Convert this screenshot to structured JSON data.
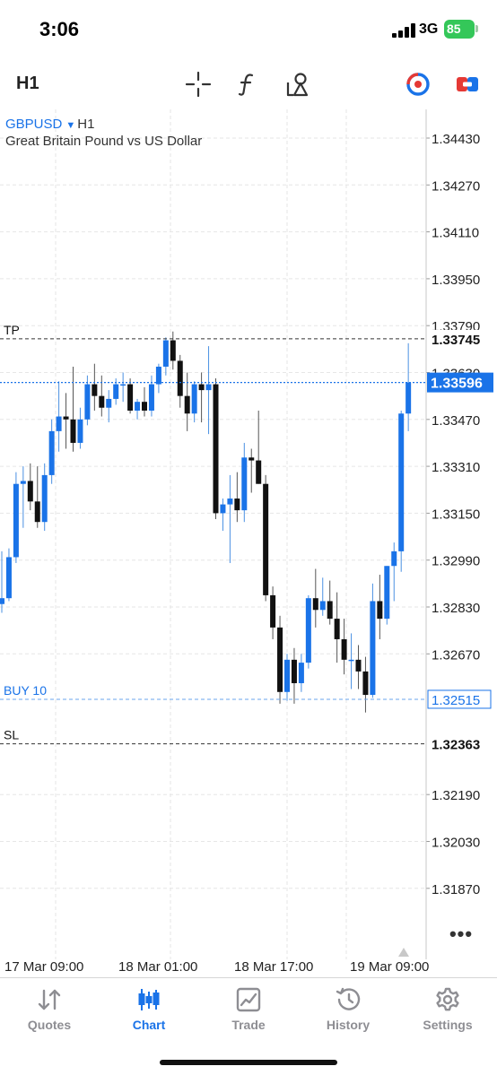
{
  "status_bar": {
    "time": "3:06",
    "network": "3G",
    "battery": "85"
  },
  "toolbar": {
    "timeframe": "H1",
    "icons": [
      "crosshair-icon",
      "indicator-icon",
      "objects-icon",
      "trade-color-icon",
      "one-click-trading-icon"
    ]
  },
  "symbol": {
    "name": "GBPUSD",
    "timeframe": "H1",
    "description": "Great Britain Pound vs US Dollar"
  },
  "chart_data": {
    "type": "candlestick",
    "symbol": "GBPUSD",
    "timeframe": "H1",
    "ylim": [
      1.3172,
      1.3452
    ],
    "grid": true,
    "price_ticks": [
      "1.34430",
      "1.34270",
      "1.34110",
      "1.33950",
      "1.33790",
      "1.33630",
      "1.33470",
      "1.33310",
      "1.33150",
      "1.32990",
      "1.32830",
      "1.32670",
      "1.32190",
      "1.32030",
      "1.31870"
    ],
    "time_labels": [
      "17 Mar 09:00",
      "18 Mar 01:00",
      "18 Mar 17:00",
      "19 Mar 09:00"
    ],
    "current_price": "1.33596",
    "levels": [
      {
        "name": "TP",
        "price": "1.33745",
        "color": "#111111"
      },
      {
        "name": "BUY 10",
        "price": "1.32515",
        "color": "#1a73e8"
      },
      {
        "name": "SL",
        "price": "1.32363",
        "color": "#111111"
      }
    ],
    "candles": [
      {
        "o": 1.3284,
        "h": 1.3302,
        "l": 1.3281,
        "c": 1.3286
      },
      {
        "o": 1.3286,
        "h": 1.3303,
        "l": 1.3285,
        "c": 1.33
      },
      {
        "o": 1.33,
        "h": 1.3329,
        "l": 1.3298,
        "c": 1.3325
      },
      {
        "o": 1.3325,
        "h": 1.3331,
        "l": 1.331,
        "c": 1.3326
      },
      {
        "o": 1.3326,
        "h": 1.3332,
        "l": 1.3316,
        "c": 1.3319
      },
      {
        "o": 1.3319,
        "h": 1.3331,
        "l": 1.331,
        "c": 1.3312
      },
      {
        "o": 1.3312,
        "h": 1.3332,
        "l": 1.3309,
        "c": 1.3328
      },
      {
        "o": 1.3328,
        "h": 1.3347,
        "l": 1.3325,
        "c": 1.3343
      },
      {
        "o": 1.3343,
        "h": 1.336,
        "l": 1.3336,
        "c": 1.3348
      },
      {
        "o": 1.3348,
        "h": 1.3356,
        "l": 1.3337,
        "c": 1.3347
      },
      {
        "o": 1.3347,
        "h": 1.3365,
        "l": 1.3336,
        "c": 1.3339
      },
      {
        "o": 1.3339,
        "h": 1.3351,
        "l": 1.3337,
        "c": 1.3347
      },
      {
        "o": 1.3347,
        "h": 1.3362,
        "l": 1.3345,
        "c": 1.3359
      },
      {
        "o": 1.3359,
        "h": 1.3366,
        "l": 1.335,
        "c": 1.3355
      },
      {
        "o": 1.3355,
        "h": 1.3362,
        "l": 1.3348,
        "c": 1.3351
      },
      {
        "o": 1.3351,
        "h": 1.3357,
        "l": 1.3346,
        "c": 1.3354
      },
      {
        "o": 1.3354,
        "h": 1.3361,
        "l": 1.3352,
        "c": 1.3359
      },
      {
        "o": 1.3359,
        "h": 1.3363,
        "l": 1.3353,
        "c": 1.3359
      },
      {
        "o": 1.3359,
        "h": 1.3361,
        "l": 1.3349,
        "c": 1.335
      },
      {
        "o": 1.335,
        "h": 1.3354,
        "l": 1.3347,
        "c": 1.3353
      },
      {
        "o": 1.3353,
        "h": 1.3358,
        "l": 1.3348,
        "c": 1.335
      },
      {
        "o": 1.335,
        "h": 1.3362,
        "l": 1.3348,
        "c": 1.3359
      },
      {
        "o": 1.3359,
        "h": 1.3366,
        "l": 1.3356,
        "c": 1.3365
      },
      {
        "o": 1.3365,
        "h": 1.3375,
        "l": 1.3362,
        "c": 1.3374
      },
      {
        "o": 1.3374,
        "h": 1.3377,
        "l": 1.3364,
        "c": 1.3367
      },
      {
        "o": 1.3367,
        "h": 1.3369,
        "l": 1.3351,
        "c": 1.3355
      },
      {
        "o": 1.3355,
        "h": 1.3363,
        "l": 1.3343,
        "c": 1.3349
      },
      {
        "o": 1.3349,
        "h": 1.336,
        "l": 1.3346,
        "c": 1.3359
      },
      {
        "o": 1.3359,
        "h": 1.3363,
        "l": 1.3346,
        "c": 1.3357
      },
      {
        "o": 1.3357,
        "h": 1.3372,
        "l": 1.3342,
        "c": 1.3359
      },
      {
        "o": 1.3359,
        "h": 1.3361,
        "l": 1.3313,
        "c": 1.3315
      },
      {
        "o": 1.3315,
        "h": 1.332,
        "l": 1.3309,
        "c": 1.3318
      },
      {
        "o": 1.3318,
        "h": 1.3328,
        "l": 1.3298,
        "c": 1.332
      },
      {
        "o": 1.332,
        "h": 1.3329,
        "l": 1.3312,
        "c": 1.3316
      },
      {
        "o": 1.3316,
        "h": 1.3339,
        "l": 1.3312,
        "c": 1.3334
      },
      {
        "o": 1.3334,
        "h": 1.3337,
        "l": 1.3322,
        "c": 1.3333
      },
      {
        "o": 1.3333,
        "h": 1.335,
        "l": 1.3325,
        "c": 1.3325
      },
      {
        "o": 1.3325,
        "h": 1.3328,
        "l": 1.3285,
        "c": 1.3287
      },
      {
        "o": 1.3287,
        "h": 1.329,
        "l": 1.3272,
        "c": 1.3276
      },
      {
        "o": 1.3276,
        "h": 1.328,
        "l": 1.325,
        "c": 1.3254
      },
      {
        "o": 1.3254,
        "h": 1.3267,
        "l": 1.3251,
        "c": 1.3265
      },
      {
        "o": 1.3265,
        "h": 1.3269,
        "l": 1.325,
        "c": 1.3257
      },
      {
        "o": 1.3257,
        "h": 1.3267,
        "l": 1.3254,
        "c": 1.3264
      },
      {
        "o": 1.3264,
        "h": 1.3287,
        "l": 1.3262,
        "c": 1.3286
      },
      {
        "o": 1.3286,
        "h": 1.3296,
        "l": 1.3276,
        "c": 1.3282
      },
      {
        "o": 1.3282,
        "h": 1.3293,
        "l": 1.328,
        "c": 1.3285
      },
      {
        "o": 1.3285,
        "h": 1.3292,
        "l": 1.3277,
        "c": 1.3279
      },
      {
        "o": 1.3279,
        "h": 1.3288,
        "l": 1.3264,
        "c": 1.3272
      },
      {
        "o": 1.3272,
        "h": 1.3279,
        "l": 1.326,
        "c": 1.3265
      },
      {
        "o": 1.3265,
        "h": 1.3274,
        "l": 1.3255,
        "c": 1.3265
      },
      {
        "o": 1.3265,
        "h": 1.327,
        "l": 1.3255,
        "c": 1.3261
      },
      {
        "o": 1.3261,
        "h": 1.3266,
        "l": 1.3247,
        "c": 1.3253
      },
      {
        "o": 1.3253,
        "h": 1.3291,
        "l": 1.3252,
        "c": 1.3285
      },
      {
        "o": 1.3285,
        "h": 1.3294,
        "l": 1.3272,
        "c": 1.3279
      },
      {
        "o": 1.3279,
        "h": 1.3297,
        "l": 1.3277,
        "c": 1.3297
      },
      {
        "o": 1.3297,
        "h": 1.3305,
        "l": 1.3285,
        "c": 1.3302
      },
      {
        "o": 1.3302,
        "h": 1.335,
        "l": 1.3295,
        "c": 1.3349
      },
      {
        "o": 1.3349,
        "h": 1.3373,
        "l": 1.3343,
        "c": 1.33596
      }
    ]
  },
  "tabs": [
    {
      "label": "Quotes",
      "icon": "quotes-arrows-icon",
      "active": false
    },
    {
      "label": "Chart",
      "icon": "candlestick-chart-icon",
      "active": true
    },
    {
      "label": "Trade",
      "icon": "trade-chart-icon",
      "active": false
    },
    {
      "label": "History",
      "icon": "history-clock-icon",
      "active": false
    },
    {
      "label": "Settings",
      "icon": "settings-gear-icon",
      "active": false
    }
  ],
  "colors": {
    "bull": "#1a73e8",
    "bear": "#111111",
    "accent": "#1a73e8",
    "grid": "#e6e6e6",
    "inactive_tab": "#8e8e93"
  }
}
